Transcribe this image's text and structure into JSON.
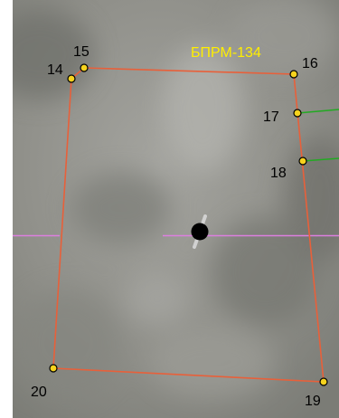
{
  "map": {
    "parcel_label": "БПРМ-134",
    "point_labels": [
      "14",
      "15",
      "16",
      "17",
      "18",
      "19",
      "20"
    ],
    "colors": {
      "boundary": "#e8603a",
      "vertex_fill": "#f6d31e",
      "vertex_stroke": "#000000",
      "neighbor_line": "#22aa22",
      "axis_line": "#dd7fe0",
      "label_title": "#ffee00",
      "marker": "#000000"
    },
    "icons": [
      "center-marker-icon"
    ]
  }
}
